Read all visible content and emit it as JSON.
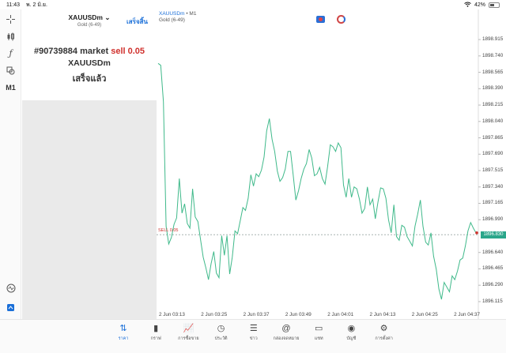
{
  "status_bar": {
    "time": "11:43",
    "date": "พ. 2 มิ.ย.",
    "battery": "42%",
    "battery_level": 0.42
  },
  "left_rail": {
    "items": [
      {
        "icon": "crosshair-icon"
      },
      {
        "icon": "indicators-icon"
      },
      {
        "icon": "function-icon"
      },
      {
        "icon": "objects-icon"
      },
      {
        "label": "M1"
      },
      {
        "icon": "pulse-icon"
      },
      {
        "icon": "add-window-icon"
      }
    ]
  },
  "order_panel": {
    "symbol": "XAUUSDm",
    "symbol_chevron": "⌄",
    "description": "Gold (6-49)",
    "done_label": "เสร็จสิ้น",
    "order_prefix": "#90739884 market ",
    "order_action": "sell 0.05",
    "order_symbol": "XAUUSDm",
    "order_status": "เสร็จแล้ว"
  },
  "chart_header": {
    "symbol": "XAUUSDm",
    "separator": " • ",
    "timeframe": "M1",
    "description": "Gold (6-49)"
  },
  "chart_data": {
    "type": "line",
    "x_tick_labels": [
      "2 Jun 03:13",
      "2 Jun 03:25",
      "2 Jun 03:37",
      "2 Jun 03:49",
      "2 Jun 04:01",
      "2 Jun 04:13",
      "2 Jun 04:25",
      "2 Jun 04:37"
    ],
    "y_tick_labels": [
      "1898.915",
      "1898.740",
      "1898.565",
      "1898.390",
      "1898.215",
      "1898.040",
      "1897.865",
      "1897.690",
      "1897.515",
      "1897.340",
      "1897.165",
      "1896.990",
      "1896.640",
      "1896.465",
      "1896.290",
      "1896.115"
    ],
    "ylim": [
      1896.03,
      1899.0
    ],
    "sell_label": "SELL 0.05",
    "sell_price": 1896.83,
    "current_price_label": "1896.830",
    "line_color": "#3fb98a",
    "values": [
      1898.66,
      1898.64,
      1898.25,
      1896.92,
      1896.73,
      1896.8,
      1896.94,
      1897.01,
      1897.43,
      1897.06,
      1897.16,
      1896.95,
      1896.9,
      1897.32,
      1897.02,
      1896.97,
      1896.78,
      1896.59,
      1896.48,
      1896.35,
      1896.52,
      1896.65,
      1896.42,
      1896.37,
      1896.82,
      1896.61,
      1896.82,
      1896.41,
      1896.59,
      1896.87,
      1896.84,
      1896.98,
      1897.12,
      1897.09,
      1897.22,
      1897.47,
      1897.35,
      1897.48,
      1897.45,
      1897.52,
      1897.66,
      1897.94,
      1898.07,
      1897.85,
      1897.72,
      1897.51,
      1897.4,
      1897.44,
      1897.53,
      1897.72,
      1897.72,
      1897.47,
      1897.2,
      1897.3,
      1897.43,
      1897.53,
      1897.59,
      1897.74,
      1897.65,
      1897.46,
      1897.48,
      1897.55,
      1897.43,
      1897.37,
      1897.56,
      1897.79,
      1897.77,
      1897.72,
      1897.81,
      1897.76,
      1897.36,
      1897.23,
      1897.43,
      1897.23,
      1897.34,
      1897.32,
      1897.21,
      1897.06,
      1897.11,
      1897.34,
      1897.15,
      1897.21,
      1897.0,
      1897.18,
      1897.33,
      1897.32,
      1897.22,
      1896.99,
      1896.85,
      1897.15,
      1896.81,
      1896.77,
      1896.93,
      1896.91,
      1896.81,
      1896.76,
      1896.71,
      1896.92,
      1897.05,
      1897.2,
      1896.92,
      1896.75,
      1896.72,
      1896.85,
      1896.6,
      1896.46,
      1896.25,
      1896.14,
      1896.32,
      1896.27,
      1896.22,
      1896.39,
      1896.35,
      1896.44,
      1896.56,
      1896.58,
      1896.71,
      1896.87,
      1896.96,
      1896.9,
      1896.85
    ]
  },
  "bottom_nav": {
    "items": [
      {
        "label": "ราคา",
        "icon": "quotes-icon",
        "active": true
      },
      {
        "label": "กราฟ",
        "icon": "chart-icon",
        "active": false
      },
      {
        "label": "การซื้อขาย",
        "icon": "trade-icon",
        "active": false
      },
      {
        "label": "ประวัติ",
        "icon": "history-icon",
        "active": false
      },
      {
        "label": "ข่าว",
        "icon": "news-icon",
        "active": false
      },
      {
        "label": "กล่องจดหมาย",
        "icon": "mail-icon",
        "active": false
      },
      {
        "label": "แชท",
        "icon": "chat-icon",
        "active": false
      },
      {
        "label": "บัญชี",
        "icon": "account-icon",
        "active": false
      },
      {
        "label": "การตั้งค่า",
        "icon": "settings-icon",
        "active": false
      }
    ]
  }
}
